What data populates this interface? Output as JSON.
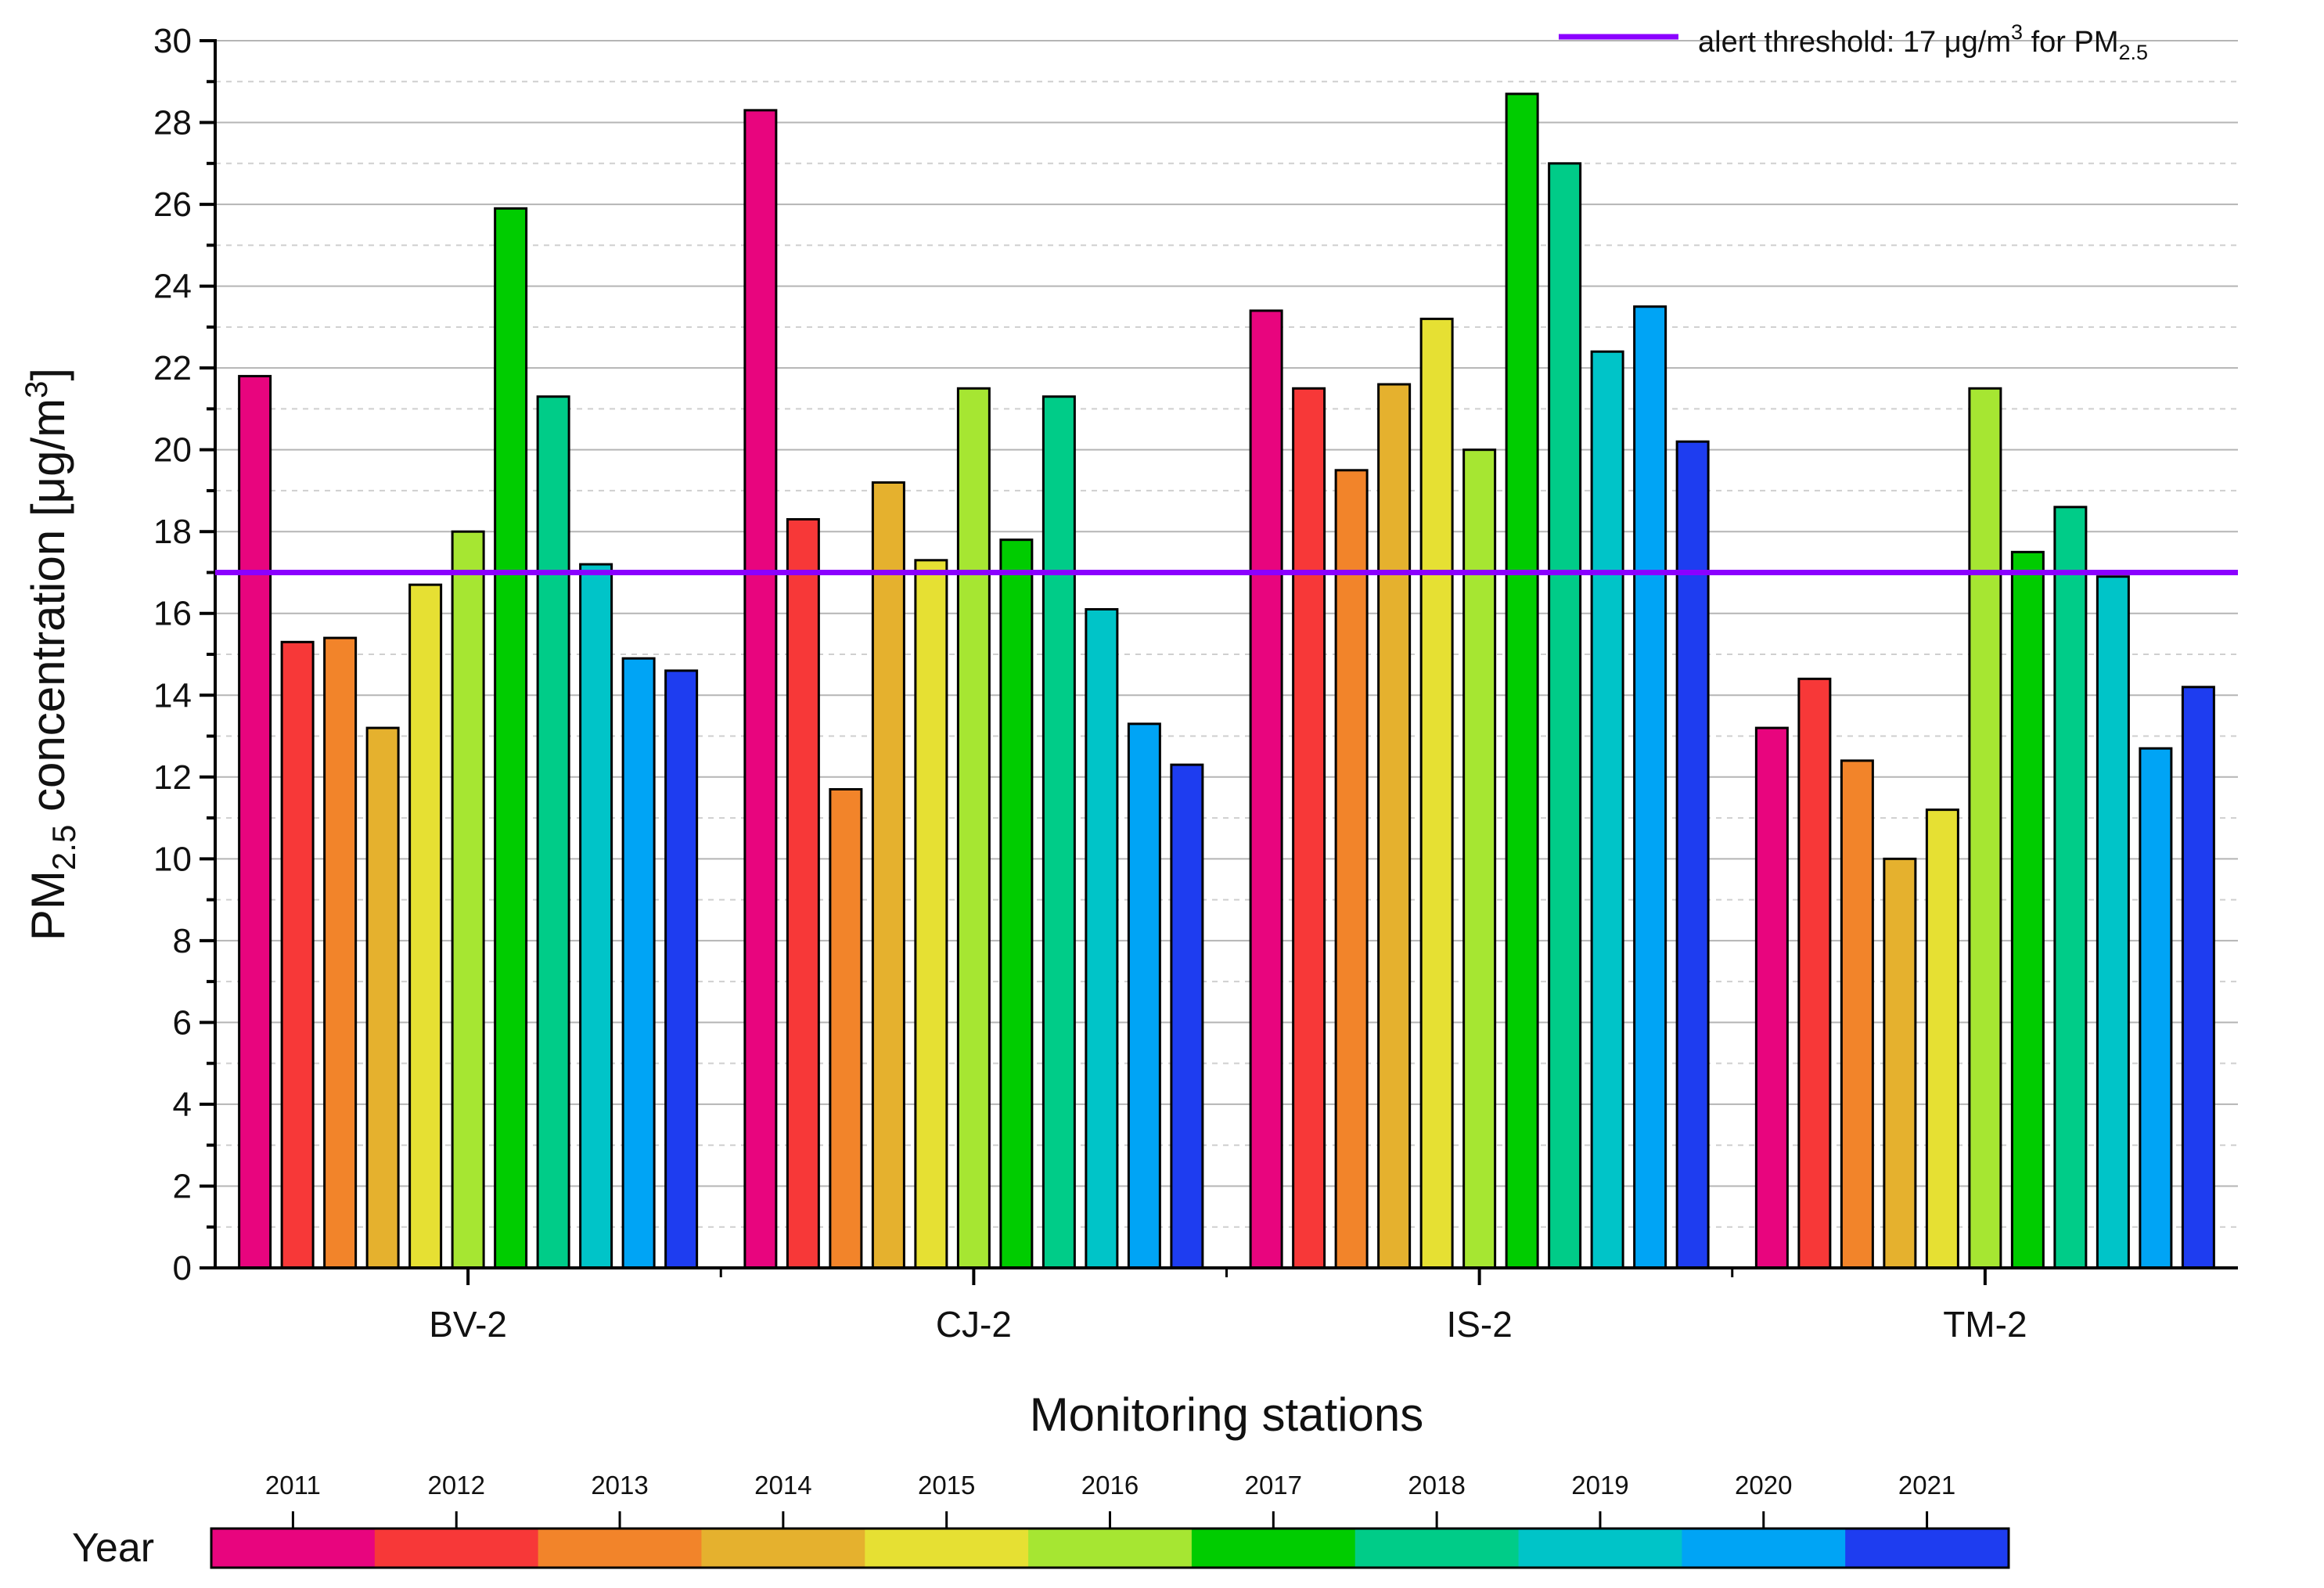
{
  "chart_data": {
    "type": "bar",
    "xlabel": "Monitoring stations",
    "ylabel": {
      "prefix": "PM",
      "subscript": "2.5",
      "suffix": " concentration [μg/m",
      "superscript": "3",
      "end": "]"
    },
    "ylim": [
      0,
      30
    ],
    "ytick_step": 2,
    "grid": true,
    "categories": [
      "BV-2",
      "CJ-2",
      "IS-2",
      "TM-2"
    ],
    "years": [
      "2011",
      "2012",
      "2013",
      "2014",
      "2015",
      "2016",
      "2017",
      "2018",
      "2019",
      "2020",
      "2021"
    ],
    "colors": [
      "#e8057e",
      "#f73838",
      "#f2842a",
      "#e5b12e",
      "#e6e033",
      "#a6e632",
      "#00cc00",
      "#00cc88",
      "#00c4c8",
      "#00a4f5",
      "#1e3df0"
    ],
    "values": {
      "BV-2": [
        21.8,
        15.3,
        15.4,
        13.2,
        16.7,
        18.0,
        25.9,
        21.3,
        17.2,
        14.9,
        14.6
      ],
      "CJ-2": [
        28.3,
        18.3,
        11.7,
        19.2,
        17.3,
        21.5,
        17.8,
        21.3,
        16.1,
        13.3,
        12.3
      ],
      "IS-2": [
        23.4,
        21.5,
        19.5,
        21.6,
        23.2,
        20.0,
        28.7,
        27.0,
        22.4,
        23.5,
        20.2
      ],
      "TM-2": [
        13.2,
        14.4,
        12.4,
        10.0,
        11.2,
        21.5,
        17.5,
        18.6,
        16.9,
        12.7,
        14.2
      ]
    },
    "threshold": {
      "value": 17,
      "color": "#8b00ff",
      "label_main": "alert threshold: 17 μg/m",
      "label_sup": "3",
      "label_mid": " for PM",
      "label_sub": "2.5"
    },
    "colorbar_title": "Year"
  }
}
